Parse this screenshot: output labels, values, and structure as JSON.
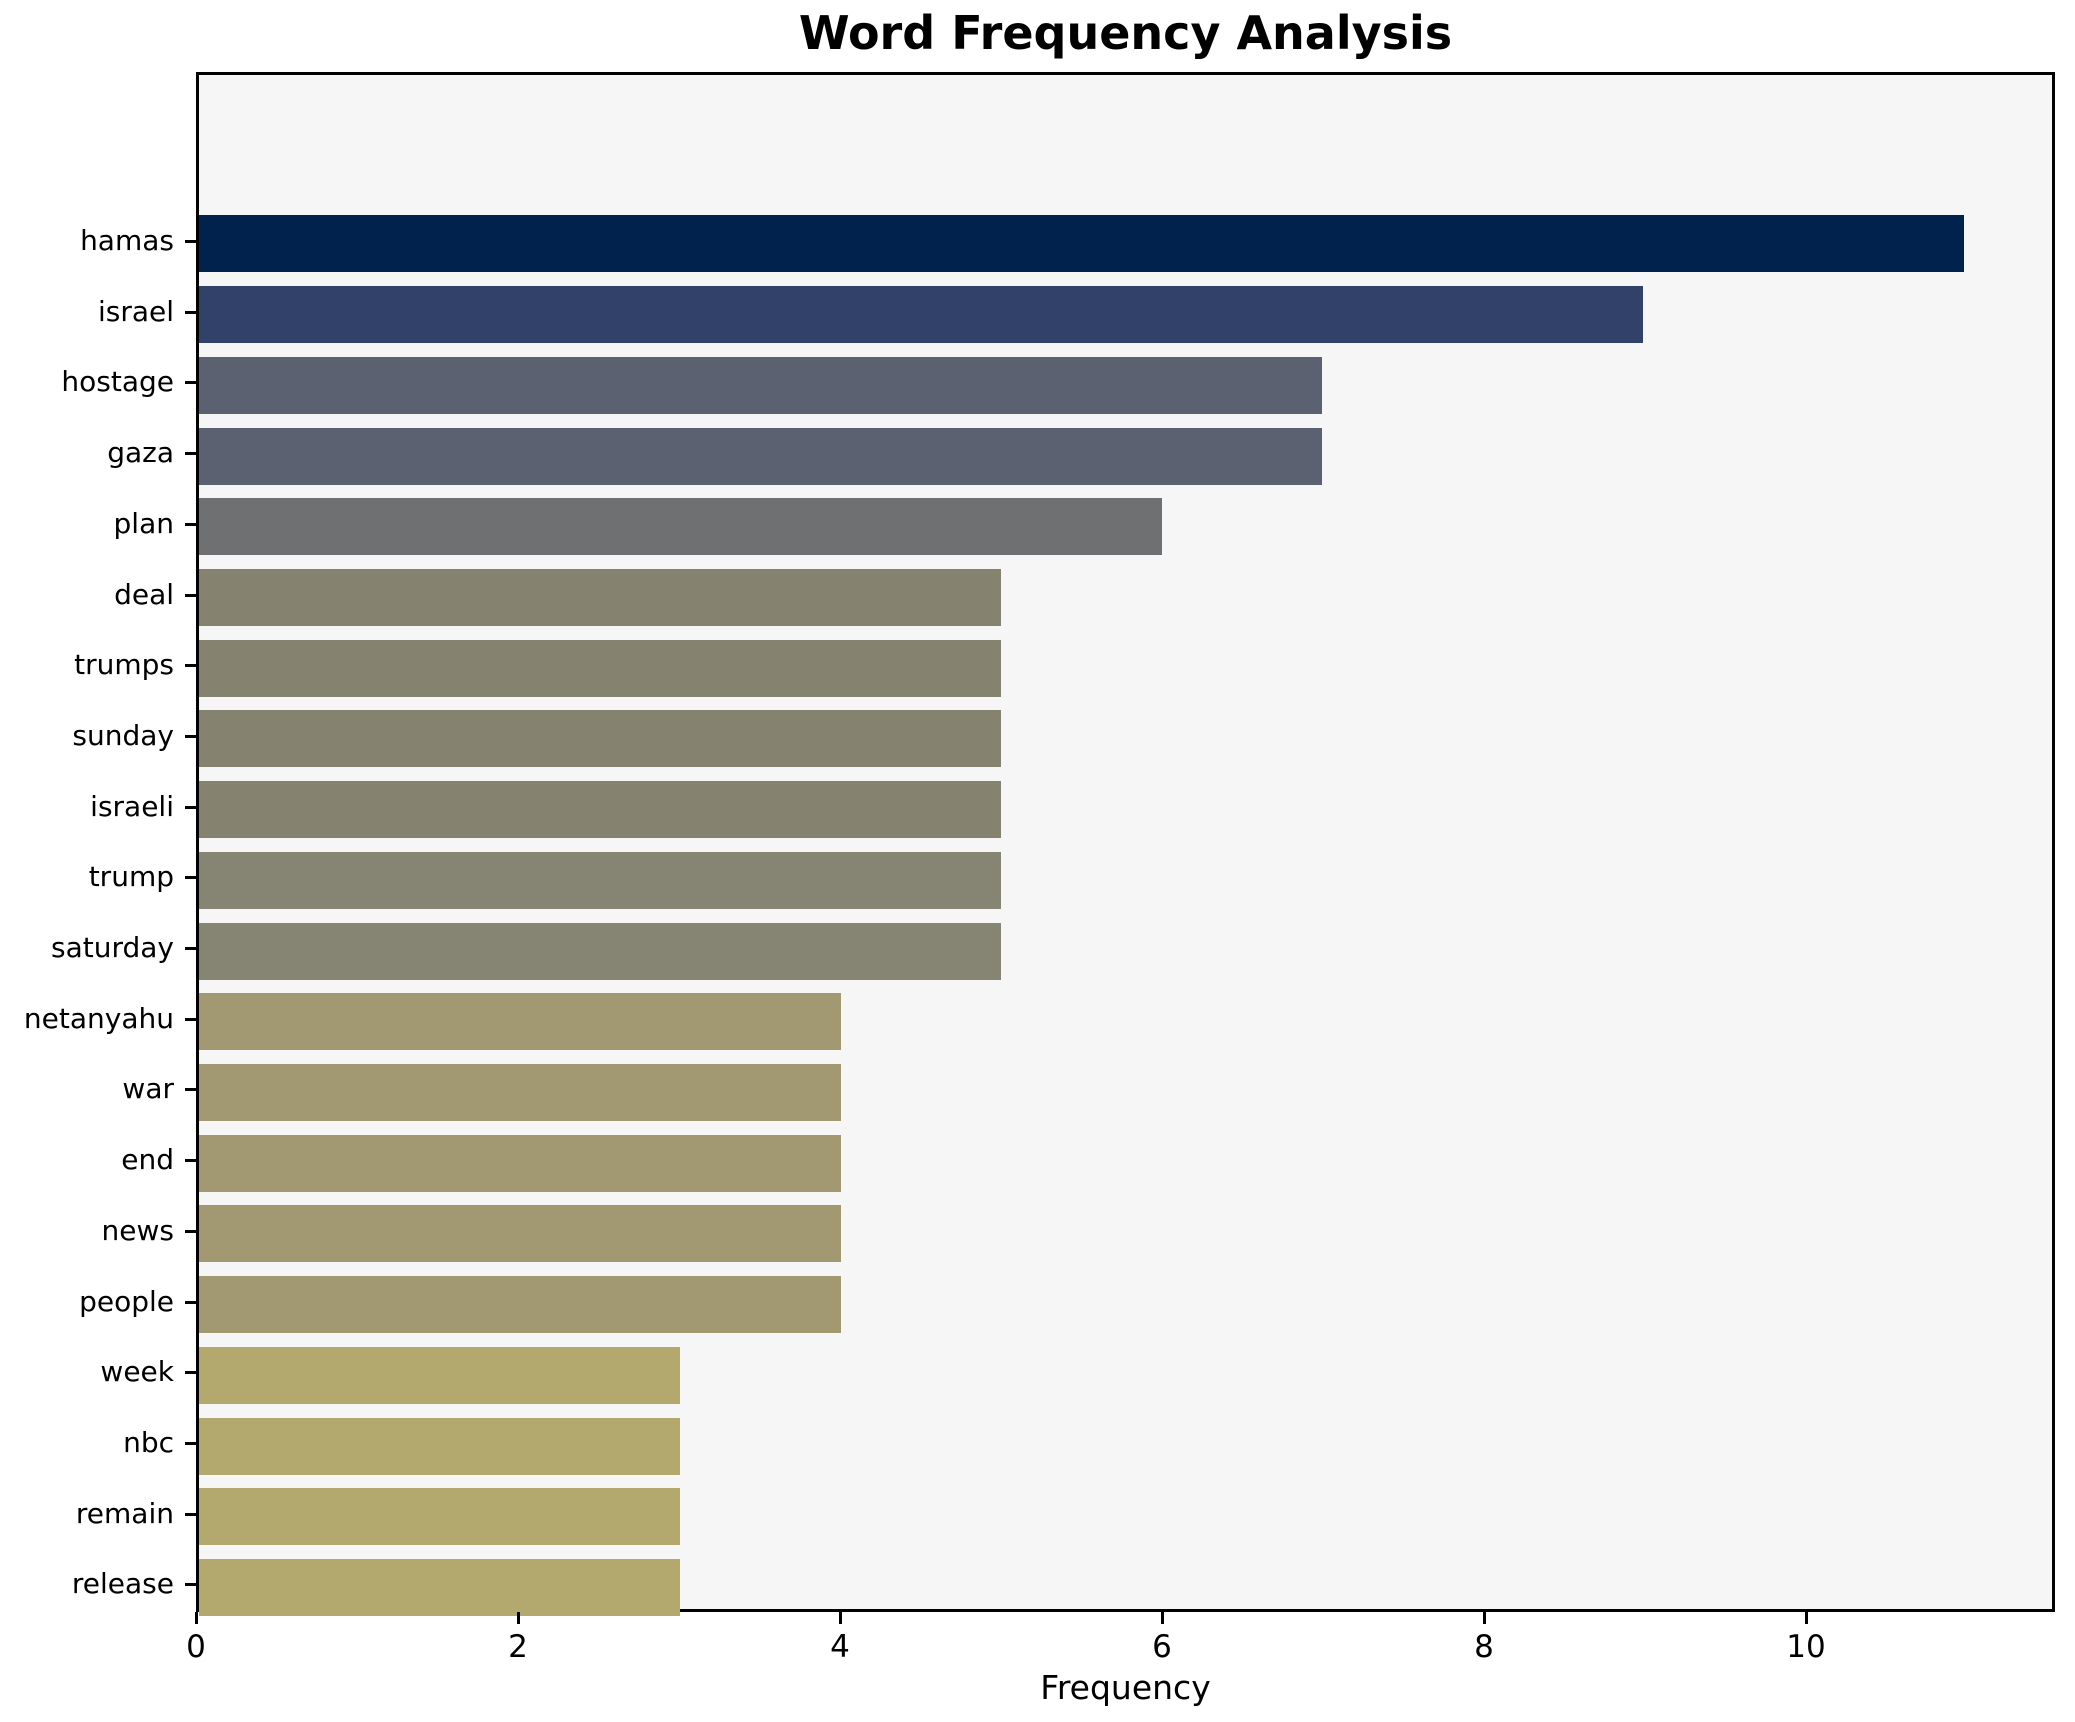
{
  "title": "Word Frequency Analysis",
  "chart_data": {
    "type": "bar",
    "orientation": "horizontal",
    "title": "Word Frequency Analysis",
    "xlabel": "Frequency",
    "ylabel": "",
    "categories": [
      "hamas",
      "israel",
      "hostage",
      "gaza",
      "plan",
      "deal",
      "trumps",
      "sunday",
      "israeli",
      "trump",
      "saturday",
      "netanyahu",
      "war",
      "end",
      "news",
      "people",
      "week",
      "nbc",
      "remain",
      "release"
    ],
    "values": [
      11,
      9,
      7,
      7,
      6,
      5,
      5,
      5,
      5,
      5,
      5,
      4,
      4,
      4,
      4,
      4,
      3,
      3,
      3,
      3
    ],
    "bar_colors": [
      "#02224e",
      "#32416a",
      "#5b6171",
      "#5b6171",
      "#6f7072",
      "#85826f",
      "#85826f",
      "#85826f",
      "#85826f",
      "#868472",
      "#868472",
      "#a29973",
      "#a29973",
      "#a29973",
      "#a29973",
      "#a29973",
      "#b3a96e",
      "#b3a96e",
      "#b3a96e",
      "#b3a96e"
    ],
    "xlim": [
      0,
      11.55
    ],
    "xticks": [
      0,
      2,
      4,
      6,
      8,
      10
    ],
    "grid": false,
    "legend_position": "none",
    "plot_background": "#f6f6f7",
    "figure_background": "#ffffff",
    "spine_color": "#000000"
  }
}
